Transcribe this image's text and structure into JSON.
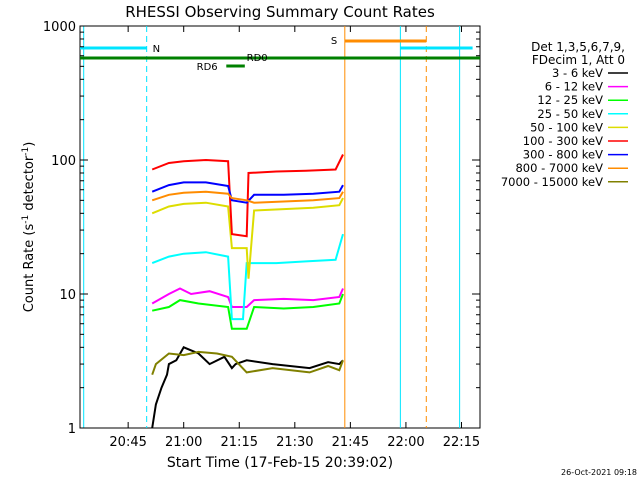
{
  "chart_data": {
    "type": "line",
    "title": "RHESSI Observing Summary Count Rates",
    "xlabel": "Start Time (17-Feb-15 20:39:02)",
    "ylabel_main": "Count Rate (s",
    "ylabel_sup1": "-1",
    "ylabel_mid": " detector",
    "ylabel_sup2": "-1",
    "ylabel_end": ")",
    "y_scale": "log",
    "ylim": [
      1,
      1000
    ],
    "xlim_minutes": [
      -7,
      101
    ],
    "x_ticks": [
      {
        "m": 6,
        "label": "20:45"
      },
      {
        "m": 21,
        "label": "21:00"
      },
      {
        "m": 36,
        "label": "21:15"
      },
      {
        "m": 51,
        "label": "21:30"
      },
      {
        "m": 66,
        "label": "21:45"
      },
      {
        "m": 81,
        "label": "22:00"
      },
      {
        "m": 96,
        "label": "22:15"
      }
    ],
    "y_ticks": [
      {
        "v": 1,
        "label": "1"
      },
      {
        "v": 10,
        "label": "10"
      },
      {
        "v": 100,
        "label": "100"
      },
      {
        "v": 1000,
        "label": "1000"
      }
    ],
    "legend_header": [
      "Det 1,3,5,6,7,9,",
      "FDecim 1, Att 0"
    ],
    "series": [
      {
        "name": "3 - 6 keV",
        "color": "#000000",
        "values": [
          [
            12.5,
            1
          ],
          [
            13.5,
            1.5
          ],
          [
            15,
            2
          ],
          [
            16.5,
            2.5
          ],
          [
            17,
            3
          ],
          [
            19,
            3.2
          ],
          [
            21,
            4
          ],
          [
            25,
            3.6
          ],
          [
            28,
            3
          ],
          [
            32,
            3.4
          ],
          [
            34,
            2.8
          ],
          [
            35,
            3
          ],
          [
            38,
            3.2
          ],
          [
            45,
            3
          ],
          [
            55,
            2.8
          ],
          [
            60,
            3.1
          ],
          [
            63,
            3
          ],
          [
            64,
            3.2
          ]
        ]
      },
      {
        "name": "6 - 12 keV",
        "color": "#ff00ff",
        "values": [
          [
            12.5,
            8.5
          ],
          [
            17,
            10
          ],
          [
            20,
            11
          ],
          [
            23,
            10
          ],
          [
            28,
            10.5
          ],
          [
            33,
            9.5
          ],
          [
            34,
            8
          ],
          [
            38,
            8
          ],
          [
            40,
            9
          ],
          [
            48,
            9.2
          ],
          [
            56,
            9
          ],
          [
            63,
            9.5
          ],
          [
            64,
            11
          ]
        ]
      },
      {
        "name": "12 - 25 keV",
        "color": "#00ff00",
        "values": [
          [
            12.5,
            7.5
          ],
          [
            17,
            8
          ],
          [
            20,
            9
          ],
          [
            25,
            8.5
          ],
          [
            33,
            8
          ],
          [
            34,
            5.5
          ],
          [
            38,
            5.5
          ],
          [
            40,
            8
          ],
          [
            48,
            7.8
          ],
          [
            56,
            8
          ],
          [
            63,
            8.5
          ],
          [
            64,
            10
          ]
        ]
      },
      {
        "name": "25 - 50 keV",
        "color": "#00ffff",
        "values": [
          [
            12.5,
            17
          ],
          [
            17,
            19
          ],
          [
            21,
            20
          ],
          [
            27,
            20.5
          ],
          [
            33,
            19
          ],
          [
            34,
            6.5
          ],
          [
            37,
            6.5
          ],
          [
            38,
            17
          ],
          [
            46,
            17
          ],
          [
            54,
            17.5
          ],
          [
            62,
            18
          ],
          [
            64,
            28
          ]
        ]
      },
      {
        "name": "50 - 100 keV",
        "color": "#dddd00",
        "values": [
          [
            12.5,
            40
          ],
          [
            17,
            45
          ],
          [
            21,
            47
          ],
          [
            27,
            48
          ],
          [
            33,
            45
          ],
          [
            34,
            22
          ],
          [
            38,
            22
          ],
          [
            38.5,
            13
          ],
          [
            40,
            42
          ],
          [
            48,
            43
          ],
          [
            56,
            44
          ],
          [
            63,
            46
          ],
          [
            64,
            52
          ]
        ]
      },
      {
        "name": "100 - 300 keV",
        "color": "#ff0000",
        "values": [
          [
            12.5,
            85
          ],
          [
            17,
            95
          ],
          [
            21,
            98
          ],
          [
            27,
            100
          ],
          [
            33,
            98
          ],
          [
            34,
            28
          ],
          [
            38,
            27
          ],
          [
            38.5,
            80
          ],
          [
            46,
            82
          ],
          [
            54,
            83
          ],
          [
            62,
            85
          ],
          [
            64,
            110
          ]
        ]
      },
      {
        "name": "300 - 800 keV",
        "color": "#0000ff",
        "values": [
          [
            12.5,
            58
          ],
          [
            17,
            65
          ],
          [
            21,
            68
          ],
          [
            27,
            68
          ],
          [
            33,
            64
          ],
          [
            34,
            50
          ],
          [
            38,
            48
          ],
          [
            40,
            55
          ],
          [
            48,
            55
          ],
          [
            56,
            56
          ],
          [
            63,
            58
          ],
          [
            64,
            65
          ]
        ]
      },
      {
        "name": "800 - 7000 keV",
        "color": "#ff8c00",
        "values": [
          [
            12.5,
            50
          ],
          [
            17,
            55
          ],
          [
            21,
            57
          ],
          [
            27,
            58
          ],
          [
            33,
            56
          ],
          [
            34,
            52
          ],
          [
            38,
            50
          ],
          [
            40,
            48
          ],
          [
            48,
            49
          ],
          [
            56,
            50
          ],
          [
            63,
            52
          ],
          [
            64,
            58
          ]
        ]
      },
      {
        "name": "7000 - 15000 keV",
        "color": "#808000",
        "values": [
          [
            12.5,
            2.5
          ],
          [
            13.5,
            3
          ],
          [
            17,
            3.6
          ],
          [
            21,
            3.5
          ],
          [
            25,
            3.7
          ],
          [
            30,
            3.6
          ],
          [
            34,
            3.4
          ],
          [
            38,
            2.6
          ],
          [
            45,
            2.8
          ],
          [
            55,
            2.6
          ],
          [
            60,
            2.9
          ],
          [
            63,
            2.7
          ],
          [
            64,
            3.2
          ]
        ]
      }
    ],
    "annotations": {
      "cyan_vlines": [
        -6,
        79.5,
        95.5
      ],
      "cyan_dashed": [
        11
      ],
      "orange_vline": [
        64.5
      ],
      "orange_dashed": [
        86.5
      ],
      "N_label": "N",
      "S_label": "S",
      "RD0_label": "RD0",
      "RD6_label": "RD6"
    }
  },
  "footer_timestamp": "26-Oct-2021 09:18"
}
